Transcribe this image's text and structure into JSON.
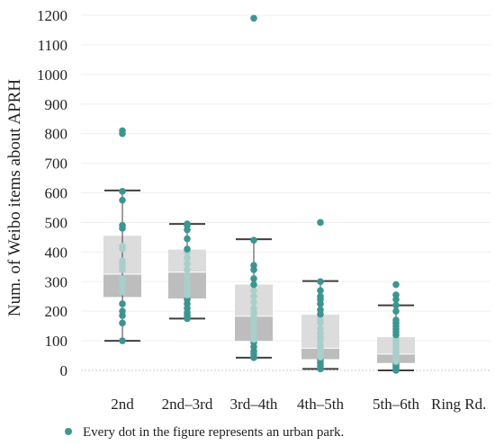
{
  "chart_data": {
    "type": "box",
    "categories": [
      "2nd",
      "2nd–3rd",
      "3rd–4th",
      "4th–5th",
      "5th–6th"
    ],
    "x_suffix_label": "Ring Rd.",
    "ylabel": "Num. of  Weibo items about APRH",
    "ylim": [
      0,
      1200
    ],
    "yticks": [
      0,
      100,
      200,
      300,
      400,
      500,
      600,
      700,
      800,
      900,
      1000,
      1100,
      1200
    ],
    "grid": true,
    "boxes": [
      {
        "category": "2nd",
        "whisker_low": 100,
        "q1": 248,
        "median": 325,
        "q3": 455,
        "whisker_high": 608
      },
      {
        "category": "2nd–3rd",
        "whisker_low": 175,
        "q1": 243,
        "median": 332,
        "q3": 408,
        "whisker_high": 495
      },
      {
        "category": "3rd–4th",
        "whisker_low": 43,
        "q1": 100,
        "median": 183,
        "q3": 290,
        "whisker_high": 443
      },
      {
        "category": "4th–5th",
        "whisker_low": 5,
        "q1": 38,
        "median": 75,
        "q3": 188,
        "whisker_high": 302
      },
      {
        "category": "5th–6th",
        "whisker_low": 0,
        "q1": 25,
        "median": 55,
        "q3": 112,
        "whisker_high": 220
      }
    ],
    "points": [
      {
        "category": "2nd",
        "values": [
          100,
          160,
          185,
          200,
          225,
          265,
          285,
          300,
          310,
          340,
          350,
          360,
          370,
          410,
          420,
          480,
          490,
          575,
          605,
          800,
          810
        ]
      },
      {
        "category": "2nd–3rd",
        "values": [
          175,
          185,
          195,
          210,
          225,
          240,
          255,
          270,
          285,
          300,
          320,
          340,
          360,
          380,
          400,
          410,
          445,
          475,
          490,
          495
        ]
      },
      {
        "category": "3rd–4th",
        "values": [
          43,
          55,
          65,
          80,
          95,
          105,
          120,
          135,
          155,
          170,
          180,
          195,
          210,
          230,
          250,
          270,
          290,
          310,
          340,
          355,
          440,
          1190
        ]
      },
      {
        "category": "4th–5th",
        "values": [
          5,
          15,
          25,
          35,
          45,
          55,
          65,
          75,
          85,
          100,
          110,
          125,
          140,
          160,
          175,
          190,
          205,
          225,
          240,
          250,
          270,
          300,
          500
        ]
      },
      {
        "category": "5th–6th",
        "values": [
          0,
          5,
          10,
          15,
          20,
          25,
          30,
          40,
          50,
          60,
          70,
          80,
          90,
          100,
          110,
          120,
          130,
          140,
          150,
          160,
          170,
          200,
          220,
          240,
          255,
          290
        ]
      }
    ],
    "legend": {
      "text": "Every dot in the figure represents an urban park.",
      "placement": "bottom-left"
    },
    "colors": {
      "dot": "#3d9590",
      "dot_in_box": "#a9cfcb",
      "box_upper": "#dcdcdc",
      "box_lower": "#bdbdbd",
      "whisker": "#3f3f3f",
      "median_line": "#ffffff",
      "grid": "#efefef",
      "zero_line": "#c8c8c8"
    }
  }
}
